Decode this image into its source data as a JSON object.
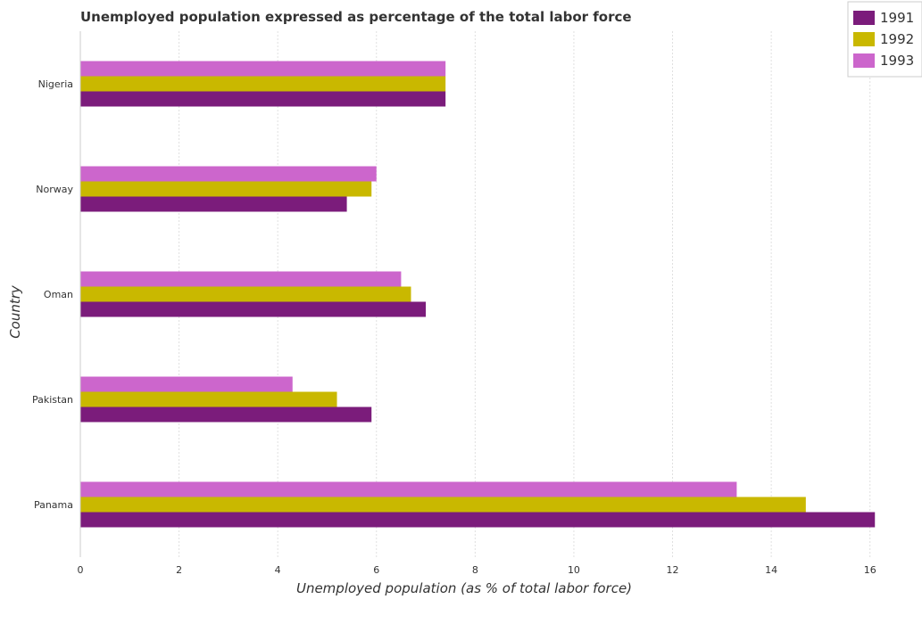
{
  "chart_data": {
    "type": "bar",
    "orientation": "horizontal",
    "title": "Unemployed population expressed as percentage of the total labor force",
    "xlabel": "Unemployed population (as % of total labor force)",
    "ylabel": "Country",
    "categories": [
      "Nigeria",
      "Norway",
      "Oman",
      "Pakistan",
      "Panama"
    ],
    "series": [
      {
        "name": "1991",
        "color": "#7b1c7b",
        "values": [
          7.4,
          5.4,
          7.0,
          5.9,
          16.1
        ]
      },
      {
        "name": "1992",
        "color": "#c9b800",
        "values": [
          7.4,
          5.9,
          6.7,
          5.2,
          14.7
        ]
      },
      {
        "name": "1993",
        "color": "#cc66cc",
        "values": [
          7.4,
          6.0,
          6.5,
          4.3,
          13.3
        ]
      }
    ],
    "xlim": [
      0,
      17
    ],
    "xticks": [
      0,
      2,
      4,
      6,
      8,
      10,
      12,
      14,
      16
    ],
    "grid": true,
    "legend_position": "top-right"
  }
}
